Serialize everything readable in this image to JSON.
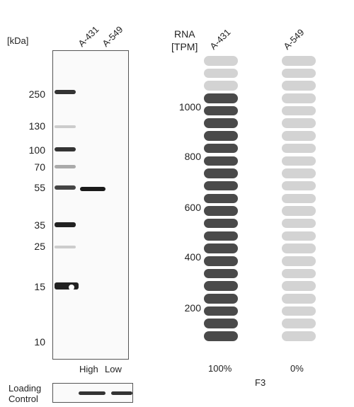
{
  "western_blot": {
    "unit_label": "[kDa]",
    "markers": [
      "250",
      "130",
      "100",
      "70",
      "55",
      "35",
      "25",
      "15",
      "10"
    ],
    "lanes": [
      "A-431",
      "A-549"
    ],
    "expression_labels": [
      "High",
      "Low"
    ],
    "loading_control_label": [
      "Loading",
      "Control"
    ]
  },
  "rna": {
    "header": [
      "RNA",
      "[TPM]"
    ],
    "cell_lines": [
      "A-431",
      "A-549"
    ],
    "y_ticks": [
      "1000",
      "800",
      "600",
      "400",
      "200"
    ],
    "percentages": [
      "100%",
      "0%"
    ],
    "gene": "F3"
  },
  "chart_data": {
    "type": "bar",
    "categories": [
      "A-431",
      "A-549"
    ],
    "values": [
      100,
      0
    ],
    "ylabel": "RNA [TPM]",
    "y_ticks": [
      200,
      400,
      600,
      800,
      1000
    ],
    "total_segments": 23,
    "filled_segments": [
      20,
      0
    ],
    "colors": {
      "filled": "#4a4a4a",
      "empty": "#d3d3d3"
    }
  }
}
